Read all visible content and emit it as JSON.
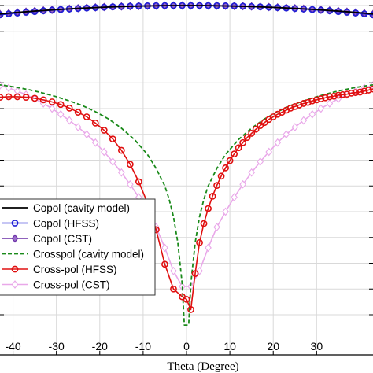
{
  "chart_data": {
    "type": "line",
    "title": "",
    "xlabel": "Theta (Degree)",
    "ylabel": "",
    "xlim": [
      -45,
      45
    ],
    "x_ticks": [
      -40,
      -30,
      -20,
      -10,
      0,
      10,
      20,
      30
    ],
    "x_tick_labels": [
      "-40",
      "-30",
      "-20",
      "-10",
      "0",
      "10",
      "20",
      "30"
    ],
    "grid": true,
    "legend_position": "lower-left",
    "series": [
      {
        "name": "Copol (cavity model)",
        "color": "#000000",
        "style": "solid",
        "marker": "none",
        "x": [
          -45,
          -40,
          -35,
          -30,
          -25,
          -20,
          -15,
          -10,
          -5,
          0,
          5,
          10,
          15,
          20,
          25,
          30,
          35,
          40,
          45
        ],
        "y": [
          -1.8,
          -1.4,
          -1.08,
          -0.8,
          -0.56,
          -0.36,
          -0.2,
          -0.09,
          -0.02,
          0,
          -0.02,
          -0.09,
          -0.2,
          -0.36,
          -0.56,
          -0.8,
          -1.08,
          -1.4,
          -1.8
        ]
      },
      {
        "name": "Copol (HFSS)",
        "color": "#1f1fd6",
        "style": "solid",
        "marker": "circle",
        "x": [
          -45,
          -43,
          -41,
          -39,
          -37,
          -35,
          -33,
          -31,
          -29,
          -27,
          -25,
          -23,
          -21,
          -19,
          -17,
          -15,
          -13,
          -11,
          -9,
          -7,
          -5,
          -3,
          -1,
          1,
          3,
          5,
          7,
          9,
          11,
          13,
          15,
          17,
          19,
          21,
          23,
          25,
          27,
          29,
          31,
          33,
          35,
          37,
          39,
          41,
          43,
          45
        ],
        "y": [
          -2.0,
          -1.8,
          -1.62,
          -1.45,
          -1.3,
          -1.16,
          -1.02,
          -0.9,
          -0.78,
          -0.67,
          -0.57,
          -0.48,
          -0.4,
          -0.32,
          -0.25,
          -0.19,
          -0.14,
          -0.09,
          -0.06,
          -0.03,
          -0.01,
          0,
          0,
          0,
          0,
          -0.01,
          -0.03,
          -0.06,
          -0.09,
          -0.14,
          -0.19,
          -0.25,
          -0.32,
          -0.4,
          -0.48,
          -0.57,
          -0.67,
          -0.78,
          -0.9,
          -1.02,
          -1.16,
          -1.3,
          -1.45,
          -1.62,
          -1.8,
          -2.0
        ]
      },
      {
        "name": "Copol (CST)",
        "color": "#6a2ea6",
        "style": "solid",
        "marker": "diamond",
        "x": [
          -45,
          -43,
          -41,
          -39,
          -37,
          -35,
          -33,
          -31,
          -29,
          -27,
          -25,
          -23,
          -21,
          -19,
          -17,
          -15,
          -13,
          -11,
          -9,
          -7,
          -5,
          -3,
          -1,
          1,
          3,
          5,
          7,
          9,
          11,
          13,
          15,
          17,
          19,
          21,
          23,
          25,
          27,
          29,
          31,
          33,
          35,
          37,
          39,
          41,
          43,
          45
        ],
        "y": [
          -1.85,
          -1.66,
          -1.5,
          -1.34,
          -1.2,
          -1.07,
          -0.95,
          -0.83,
          -0.72,
          -0.62,
          -0.53,
          -0.44,
          -0.36,
          -0.29,
          -0.23,
          -0.17,
          -0.12,
          -0.08,
          -0.05,
          -0.02,
          -0.01,
          0,
          0,
          0,
          0,
          -0.01,
          -0.02,
          -0.05,
          -0.08,
          -0.12,
          -0.17,
          -0.23,
          -0.29,
          -0.36,
          -0.44,
          -0.53,
          -0.62,
          -0.72,
          -0.83,
          -0.95,
          -1.07,
          -1.2,
          -1.34,
          -1.5,
          -1.66,
          -1.85
        ]
      },
      {
        "name": "Crosspol (cavity model)",
        "color": "#1a8a1a",
        "style": "dashed",
        "marker": "none",
        "x": [
          -45,
          -42,
          -39,
          -36,
          -33,
          -30,
          -27,
          -24,
          -21,
          -18,
          -15,
          -12,
          -9,
          -7,
          -5,
          -4,
          -3,
          -2,
          -1,
          -0.5,
          0.5,
          1,
          2,
          3,
          4,
          5,
          7,
          9,
          12,
          15,
          18,
          21,
          24,
          27,
          30,
          33,
          36,
          39,
          42,
          45
        ],
        "y": [
          -15.2,
          -15.5,
          -15.9,
          -16.4,
          -17.0,
          -17.7,
          -18.5,
          -19.4,
          -20.6,
          -22.0,
          -23.8,
          -26.0,
          -28.9,
          -31.6,
          -35.0,
          -37.6,
          -41.0,
          -46.0,
          -54.0,
          -62.0,
          -62.0,
          -54.0,
          -46.0,
          -41.0,
          -37.6,
          -35.0,
          -31.6,
          -28.9,
          -26.0,
          -23.8,
          -22.0,
          -20.6,
          -19.4,
          -18.5,
          -17.7,
          -17.0,
          -16.4,
          -15.9,
          -15.5,
          -15.2
        ]
      },
      {
        "name": "Cross-pol (HFSS)",
        "color": "#e01010",
        "style": "solid",
        "marker": "circle",
        "x": [
          -45,
          -43,
          -41,
          -39,
          -37,
          -35,
          -33,
          -31,
          -29,
          -27,
          -25,
          -23,
          -21,
          -19,
          -17,
          -15,
          -13,
          -11,
          -9,
          -7,
          -5,
          -3,
          -1,
          0,
          1,
          2,
          3,
          4,
          5,
          6,
          7,
          8,
          9,
          10,
          11,
          12,
          13,
          14,
          15,
          16,
          17,
          18,
          19,
          20,
          21,
          22,
          23,
          24,
          25,
          26,
          27,
          28,
          29,
          30,
          31,
          32,
          33,
          34,
          35,
          36,
          37,
          38,
          39,
          40,
          41,
          42,
          43,
          44,
          45
        ],
        "y": [
          -18.0,
          -17.8,
          -17.7,
          -17.7,
          -17.8,
          -18.0,
          -18.3,
          -18.7,
          -19.2,
          -19.9,
          -20.7,
          -21.6,
          -22.8,
          -24.2,
          -25.9,
          -28.1,
          -30.8,
          -34.2,
          -38.3,
          -43.5,
          -50.2,
          -55.0,
          -56.5,
          -57.0,
          -59.0,
          -52.0,
          -46.0,
          -42.3,
          -39.4,
          -37.0,
          -34.9,
          -33.1,
          -31.5,
          -30.1,
          -28.8,
          -27.6,
          -26.6,
          -25.6,
          -24.8,
          -24.0,
          -23.3,
          -22.7,
          -22.1,
          -21.6,
          -21.1,
          -20.7,
          -20.3,
          -19.9,
          -19.6,
          -19.3,
          -19.0,
          -18.8,
          -18.5,
          -18.3,
          -18.1,
          -17.9,
          -17.7,
          -17.6,
          -17.4,
          -17.3,
          -17.2,
          -17.0,
          -16.9,
          -16.8,
          -16.6,
          -16.4,
          -16.2,
          -16.0,
          -15.8
        ]
      },
      {
        "name": "Cross-pol (CST)",
        "color": "#e9a8e9",
        "style": "solid",
        "marker": "diamond-open",
        "x": [
          -45,
          -43,
          -41,
          -39,
          -37,
          -35,
          -33,
          -31,
          -29,
          -27,
          -25,
          -23,
          -21,
          -19,
          -17,
          -15,
          -13,
          -11,
          -9,
          -7,
          -5,
          -3,
          -1,
          1,
          3,
          5,
          7,
          9,
          11,
          13,
          15,
          17,
          19,
          21,
          23,
          25,
          27,
          29,
          31,
          33,
          35,
          37,
          39,
          41,
          43,
          45
        ],
        "y": [
          -15.0,
          -15.5,
          -16.0,
          -16.6,
          -17.3,
          -18.1,
          -19.0,
          -20.0,
          -21.1,
          -22.3,
          -23.6,
          -25.0,
          -26.6,
          -28.4,
          -30.3,
          -32.4,
          -34.7,
          -37.2,
          -40.0,
          -43.0,
          -47.0,
          -51.5,
          -54.5,
          -54.5,
          -51.5,
          -47.0,
          -43.0,
          -40.0,
          -37.2,
          -34.7,
          -32.4,
          -30.3,
          -28.4,
          -26.6,
          -25.0,
          -23.6,
          -22.3,
          -21.1,
          -20.0,
          -19.0,
          -18.1,
          -17.3,
          -16.6,
          -16.0,
          -15.5,
          -15.0
        ]
      }
    ]
  }
}
